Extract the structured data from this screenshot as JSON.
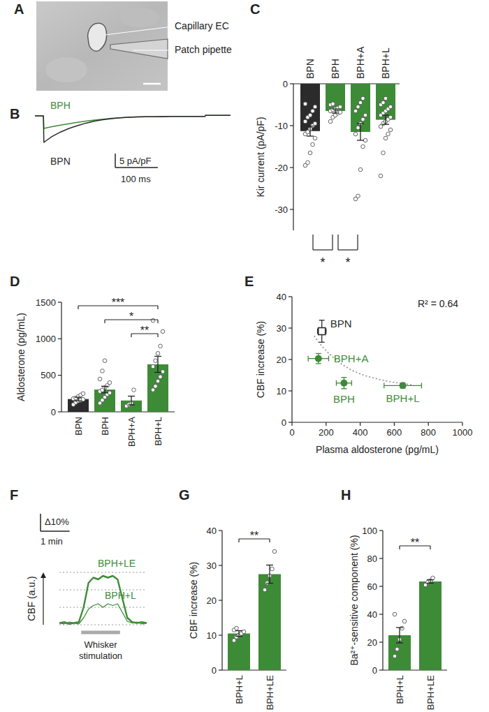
{
  "chart_data": [
    {
      "type": "image",
      "title": "A",
      "annotations": [
        "Capillary EC",
        "Patch pipette"
      ]
    },
    {
      "type": "line",
      "title": "B",
      "x": [
        0,
        10,
        20,
        21,
        30,
        40,
        60,
        80,
        100,
        120,
        140,
        160,
        180,
        200,
        220,
        240,
        260,
        280,
        300,
        320,
        340,
        360,
        380,
        400,
        401,
        420,
        440,
        460
      ],
      "series": [
        {
          "name": "BPH",
          "color": "#3d8b37",
          "values": [
            0,
            0,
            0,
            -4.5,
            -4.2,
            -3.9,
            -3.3,
            -2.8,
            -2.3,
            -1.9,
            -1.5,
            -1.2,
            -0.9,
            -0.7,
            -0.5,
            -0.4,
            -0.3,
            -0.3,
            -0.2,
            -0.2,
            -0.2,
            -0.2,
            -0.2,
            -0.2,
            0.2,
            0.2,
            0.2,
            0.2
          ]
        },
        {
          "name": "BPN",
          "color": "#2b2b2b",
          "values": [
            0,
            0,
            0,
            -9.5,
            -8.5,
            -7.4,
            -5.8,
            -4.5,
            -3.5,
            -2.6,
            -1.9,
            -1.4,
            -1.0,
            -0.7,
            -0.5,
            -0.4,
            -0.3,
            -0.3,
            -0.3,
            -0.2,
            -0.2,
            -0.2,
            -0.2,
            -0.2,
            0.2,
            0.2,
            0.2,
            0.2
          ]
        }
      ],
      "xlim": [
        0,
        460
      ],
      "ylim": [
        -12,
        2
      ],
      "tick_labels": false,
      "scale_bar": {
        "x": 100,
        "x_label": "100 ms",
        "y": 5,
        "y_label": "5 pA/pF"
      }
    },
    {
      "type": "bar",
      "title": "C",
      "categories": [
        "BPN",
        "BPH",
        "BPH+A",
        "BPH+L"
      ],
      "values": [
        -11.3,
        -6.5,
        -11.5,
        -8.6
      ],
      "errors": [
        1.2,
        0.5,
        2.0,
        1.1
      ],
      "points": [
        [
          -19.5,
          -18.8,
          -16.5,
          -14.5,
          -13,
          -12,
          -11.5,
          -10.8,
          -10,
          -9.5,
          -9,
          -8,
          -7.5,
          -6.5,
          -5.5,
          -4.8
        ],
        [
          -9,
          -8,
          -7.5,
          -7,
          -6.8,
          -6.5,
          -6.2,
          -6,
          -5.8,
          -5.5,
          -5,
          -4.8
        ],
        [
          -27.5,
          -26.8,
          -20.5,
          -15,
          -13.5,
          -12,
          -10.5,
          -9.5,
          -8.5,
          -7.5,
          -6.5,
          -5.5,
          -4.5,
          -3.5
        ],
        [
          -22,
          -16.5,
          -13,
          -12,
          -11,
          -10.2,
          -9.5,
          -9,
          -8.5,
          -8,
          -7.5,
          -7,
          -6.5,
          -6,
          -5.5,
          -5,
          -4.5,
          -3.5
        ]
      ],
      "colors": [
        "#2b2b2b",
        "#3d8b37",
        "#3d8b37",
        "#3d8b37"
      ],
      "ylim": [
        -35,
        0
      ],
      "yticks": [
        0,
        -10,
        -20,
        -30
      ],
      "ylabel": "Kir current (pA/pF)",
      "significance": [
        {
          "from": 0,
          "to": 1,
          "label": "*"
        },
        {
          "from": 1,
          "to": 2,
          "label": "*"
        }
      ]
    },
    {
      "type": "bar",
      "title": "D",
      "categories": [
        "BPN",
        "BPH",
        "BPH+A",
        "BPH+L"
      ],
      "values": [
        175,
        305,
        155,
        650
      ],
      "errors": [
        25,
        45,
        60,
        110
      ],
      "points": [
        [
          100,
          130,
          150,
          160,
          170,
          180,
          190,
          210,
          230,
          250
        ],
        [
          120,
          160,
          200,
          240,
          260,
          280,
          300,
          330,
          360,
          400,
          450,
          560,
          700
        ],
        [
          80,
          100,
          120,
          300
        ],
        [
          300,
          350,
          420,
          480,
          550,
          620,
          700,
          800,
          900,
          1100,
          1250
        ]
      ],
      "colors": [
        "#2b2b2b",
        "#3d8b37",
        "#3d8b37",
        "#3d8b37"
      ],
      "ylim": [
        0,
        1500
      ],
      "yticks": [
        0,
        500,
        1000,
        1500
      ],
      "ylabel": "Aldosterone (pg/mL)",
      "significance": [
        {
          "from": 0,
          "to": 3,
          "label": "***"
        },
        {
          "from": 1,
          "to": 3,
          "label": "*"
        },
        {
          "from": 2,
          "to": 3,
          "label": "**"
        }
      ]
    },
    {
      "type": "scatter",
      "title": "E",
      "series": [
        {
          "name": "BPN",
          "color": "#2b2b2b",
          "marker": "square",
          "x": [
            175
          ],
          "values": [
            29
          ],
          "x_error": [
            25
          ],
          "error": [
            3.5
          ]
        },
        {
          "name": "BPH+A",
          "color": "#3d8b37",
          "marker": "circle",
          "x": [
            155
          ],
          "values": [
            20.3
          ],
          "x_error": [
            60
          ],
          "error": [
            1.6
          ]
        },
        {
          "name": "BPH",
          "color": "#3d8b37",
          "marker": "circle",
          "x": [
            305
          ],
          "values": [
            12.5
          ],
          "x_error": [
            45
          ],
          "error": [
            1.8
          ]
        },
        {
          "name": "BPH+L",
          "color": "#3d8b37",
          "marker": "circle",
          "x": [
            650
          ],
          "values": [
            11.7
          ],
          "x_error": [
            110
          ],
          "error": [
            0.8
          ]
        }
      ],
      "fit": {
        "x": [
          130,
          160,
          200,
          250,
          300,
          350,
          400,
          450,
          500,
          550,
          600,
          650,
          700
        ],
        "values": [
          27.5,
          25.2,
          22.8,
          20.2,
          18.2,
          16.6,
          15.4,
          14.5,
          13.8,
          13.2,
          12.7,
          12.3,
          12.0
        ],
        "line_style": "dotted"
      },
      "xlim": [
        0,
        1000
      ],
      "xticks": [
        0,
        200,
        400,
        600,
        800,
        1000
      ],
      "ylim": [
        0,
        40
      ],
      "yticks": [
        0,
        10,
        20,
        30,
        40
      ],
      "xlabel": "Plasma aldosterone (pg/mL)",
      "ylabel": "CBF increase (%)",
      "annotations": [
        "R² = 0.64"
      ]
    },
    {
      "type": "line",
      "title": "F",
      "x": [
        0,
        10,
        20,
        30,
        40,
        50,
        60,
        70,
        80,
        90,
        100,
        110,
        120,
        130,
        140,
        150,
        160,
        170,
        180
      ],
      "series": [
        {
          "name": "BPH+LE",
          "color": "#3d8b37",
          "values": [
            1,
            1.5,
            0.5,
            1,
            1.5,
            10,
            24,
            27,
            26,
            28,
            27,
            28,
            26,
            15,
            4,
            1.5,
            1,
            1.5,
            1
          ]
        },
        {
          "name": "BPH+L",
          "color": "#3d8b37",
          "values": [
            1,
            0.5,
            1.5,
            1,
            0.5,
            4,
            9,
            11,
            12,
            10,
            12,
            11,
            12,
            7,
            2,
            1,
            1.5,
            0.5,
            1
          ]
        }
      ],
      "xlim": [
        0,
        180
      ],
      "ylim": [
        0,
        30
      ],
      "yticks": [
        0,
        10,
        20,
        30
      ],
      "grid": true,
      "tick_labels": false,
      "ylabel": "CBF (a.u.)",
      "scale_bar": {
        "x": 60,
        "x_label": "1 min",
        "y": 10,
        "y_label": "Δ10%"
      },
      "stimulus": {
        "start": 45,
        "end": 125,
        "label": "Whisker stimulation"
      }
    },
    {
      "type": "bar",
      "title": "G",
      "categories": [
        "BPH+L",
        "BPH+LE"
      ],
      "values": [
        10.5,
        27.5
      ],
      "errors": [
        0.8,
        2.6
      ],
      "points": [
        [
          8.5,
          9.5,
          10,
          10.5,
          11,
          11.5,
          12
        ],
        [
          23,
          25,
          27,
          29,
          34
        ]
      ],
      "colors": [
        "#3d8b37",
        "#3d8b37"
      ],
      "ylim": [
        0,
        40
      ],
      "yticks": [
        0,
        10,
        20,
        30,
        40
      ],
      "ylabel": "CBF increase (%)",
      "significance": [
        {
          "from": 0,
          "to": 1,
          "label": "**"
        }
      ]
    },
    {
      "type": "bar",
      "title": "H",
      "categories": [
        "BPH+L",
        "BPH+LE"
      ],
      "values": [
        25,
        63.5
      ],
      "errors": [
        5.5,
        1.2
      ],
      "points": [
        [
          10,
          15,
          22,
          30,
          35,
          40
        ],
        [
          61,
          63,
          64,
          66
        ]
      ],
      "colors": [
        "#3d8b37",
        "#3d8b37"
      ],
      "ylim": [
        0,
        100
      ],
      "yticks": [
        0,
        20,
        40,
        60,
        80,
        100
      ],
      "ylabel": "Ba²⁺-sensitive component (%)",
      "significance": [
        {
          "from": 0,
          "to": 1,
          "label": "**"
        }
      ]
    }
  ]
}
